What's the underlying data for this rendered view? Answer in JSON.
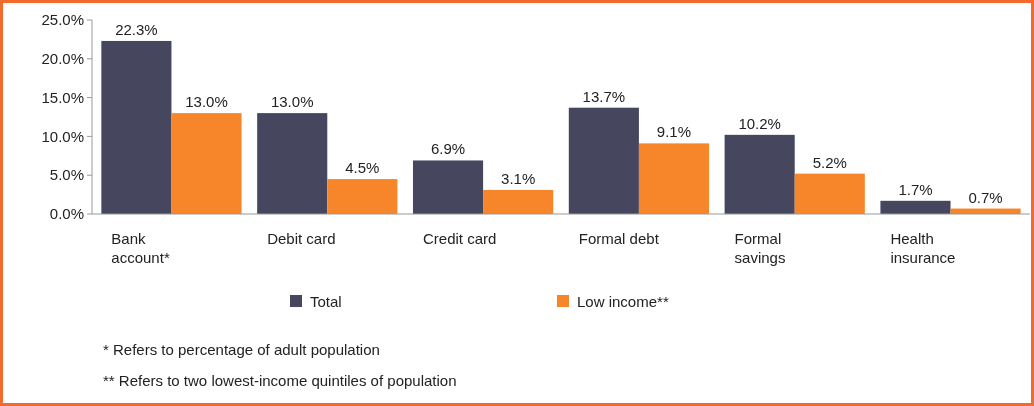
{
  "chart_data": {
    "type": "bar",
    "categories": [
      "Bank account*",
      "Debit card",
      "Credit card",
      "Formal debt",
      "Formal savings",
      "Health insurance"
    ],
    "series": [
      {
        "name": "Total",
        "color": "#46475f",
        "values": [
          22.3,
          13.0,
          6.9,
          13.7,
          10.2,
          1.7
        ],
        "value_labels": [
          "22.3%",
          "13.0%",
          "6.9%",
          "13.7%",
          "10.2%",
          "1.7%"
        ]
      },
      {
        "name": "Low income**",
        "color": "#f7862a",
        "values": [
          13.0,
          4.5,
          3.1,
          9.1,
          5.2,
          0.7
        ],
        "value_labels": [
          "13.0%",
          "4.5%",
          "3.1%",
          "9.1%",
          "5.2%",
          "0.7%"
        ]
      }
    ],
    "ylim": [
      0,
      25
    ],
    "yticks": [
      {
        "value": 0,
        "label": "0.0%"
      },
      {
        "value": 5,
        "label": "5.0%"
      },
      {
        "value": 10,
        "label": "10.0%"
      },
      {
        "value": 15,
        "label": "15.0%"
      },
      {
        "value": 20,
        "label": "20.0%"
      },
      {
        "value": 25,
        "label": "25.0%"
      }
    ],
    "legend": "bottom",
    "grid": false,
    "annotations": [
      "* Refers to percentage of adult population",
      "** Refers to two lowest-income quintiles of population"
    ]
  }
}
